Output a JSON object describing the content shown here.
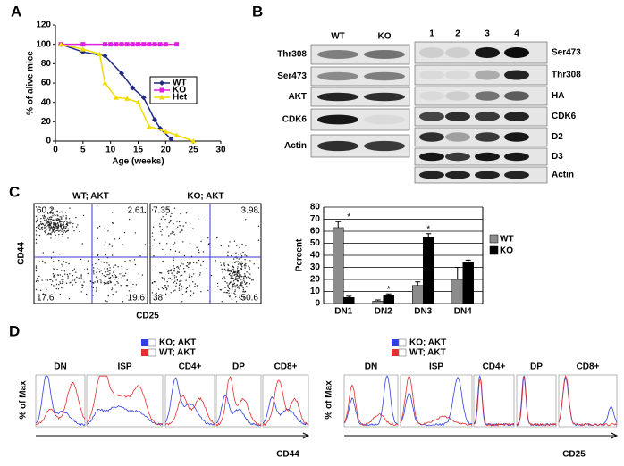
{
  "figure": {
    "panel_labels": [
      "A",
      "B",
      "C",
      "D"
    ]
  },
  "chart_data": [
    {
      "type": "line",
      "x_label": "Age (weeks)",
      "y_label": "% of alive mice",
      "xlim": [
        0,
        30
      ],
      "xticks": [
        0,
        5,
        10,
        15,
        20,
        25,
        30
      ],
      "ylim": [
        0,
        120
      ],
      "yticks": [
        0,
        20,
        40,
        60,
        80,
        100,
        120
      ],
      "series": [
        {
          "name": "WT",
          "color": "#1f2a80",
          "marker": "diamond",
          "x": [
            1,
            5,
            9,
            12,
            14,
            16,
            18,
            19,
            21
          ],
          "values": [
            100,
            92,
            88,
            70,
            55,
            45,
            22,
            13,
            2
          ]
        },
        {
          "name": "KO",
          "color": "#e020e0",
          "marker": "square",
          "x": [
            1,
            5,
            9,
            10,
            11,
            12,
            13,
            14,
            15,
            16,
            17,
            18,
            19,
            20,
            22
          ],
          "values": [
            100,
            100,
            100,
            100,
            100,
            100,
            100,
            100,
            100,
            100,
            100,
            100,
            100,
            100,
            100
          ]
        },
        {
          "name": "Het",
          "color": "#f0dc00",
          "marker": "triangle",
          "x": [
            1,
            5,
            8,
            9,
            11,
            13,
            15,
            17,
            20,
            22,
            25
          ],
          "values": [
            100,
            95,
            90,
            60,
            45,
            44,
            40,
            15,
            10,
            6,
            0
          ]
        }
      ]
    },
    {
      "type": "bar",
      "y_label": "Percent",
      "categories": [
        "DN1",
        "DN2",
        "DN3",
        "DN4"
      ],
      "ylim": [
        0,
        80
      ],
      "yticks": [
        0,
        10,
        20,
        30,
        40,
        50,
        60,
        70,
        80
      ],
      "grid": true,
      "series": [
        {
          "name": "WT",
          "color": "#8c8c8c",
          "values": [
            63,
            2,
            15,
            20
          ],
          "errors": [
            5,
            1,
            3,
            10
          ]
        },
        {
          "name": "KO",
          "color": "#000000",
          "values": [
            5,
            7,
            55,
            34
          ],
          "errors": [
            1,
            1,
            3,
            2
          ]
        }
      ],
      "annotations": [
        "*",
        "*",
        "*",
        null
      ]
    }
  ],
  "blots": {
    "left": {
      "columns": [
        "WT",
        "KO"
      ],
      "rows": [
        "Thr308",
        "Ser473",
        "AKT",
        "CDK6",
        "Actin"
      ]
    },
    "right": {
      "lanes": [
        "1",
        "2",
        "3",
        "4"
      ],
      "rows": [
        "Ser473",
        "Thr308",
        "HA",
        "CDK6",
        "D2",
        "D3",
        "Actin"
      ]
    }
  },
  "flow": {
    "y_label": "CD44",
    "x_label": "CD25",
    "plots": [
      {
        "title": "WT; AKT",
        "quadrants": [
          60.2,
          2.61,
          17.6,
          19.6
        ]
      },
      {
        "title": "KO; AKT",
        "quadrants": [
          7.35,
          3.98,
          38,
          50.6
        ]
      }
    ]
  },
  "histograms": [
    {
      "legend": [
        "KO; AKT",
        "WT; AKT"
      ],
      "panels": [
        "DN",
        "ISP",
        "CD4+",
        "DP",
        "CD8+"
      ],
      "y_label": "% of Max",
      "x_label": "CD44"
    },
    {
      "legend": [
        "KO; AKT",
        "WT; AKT"
      ],
      "panels": [
        "DN",
        "ISP",
        "CD4+",
        "DP",
        "CD8+"
      ],
      "y_label": "% of Max",
      "x_label": "CD25"
    }
  ]
}
